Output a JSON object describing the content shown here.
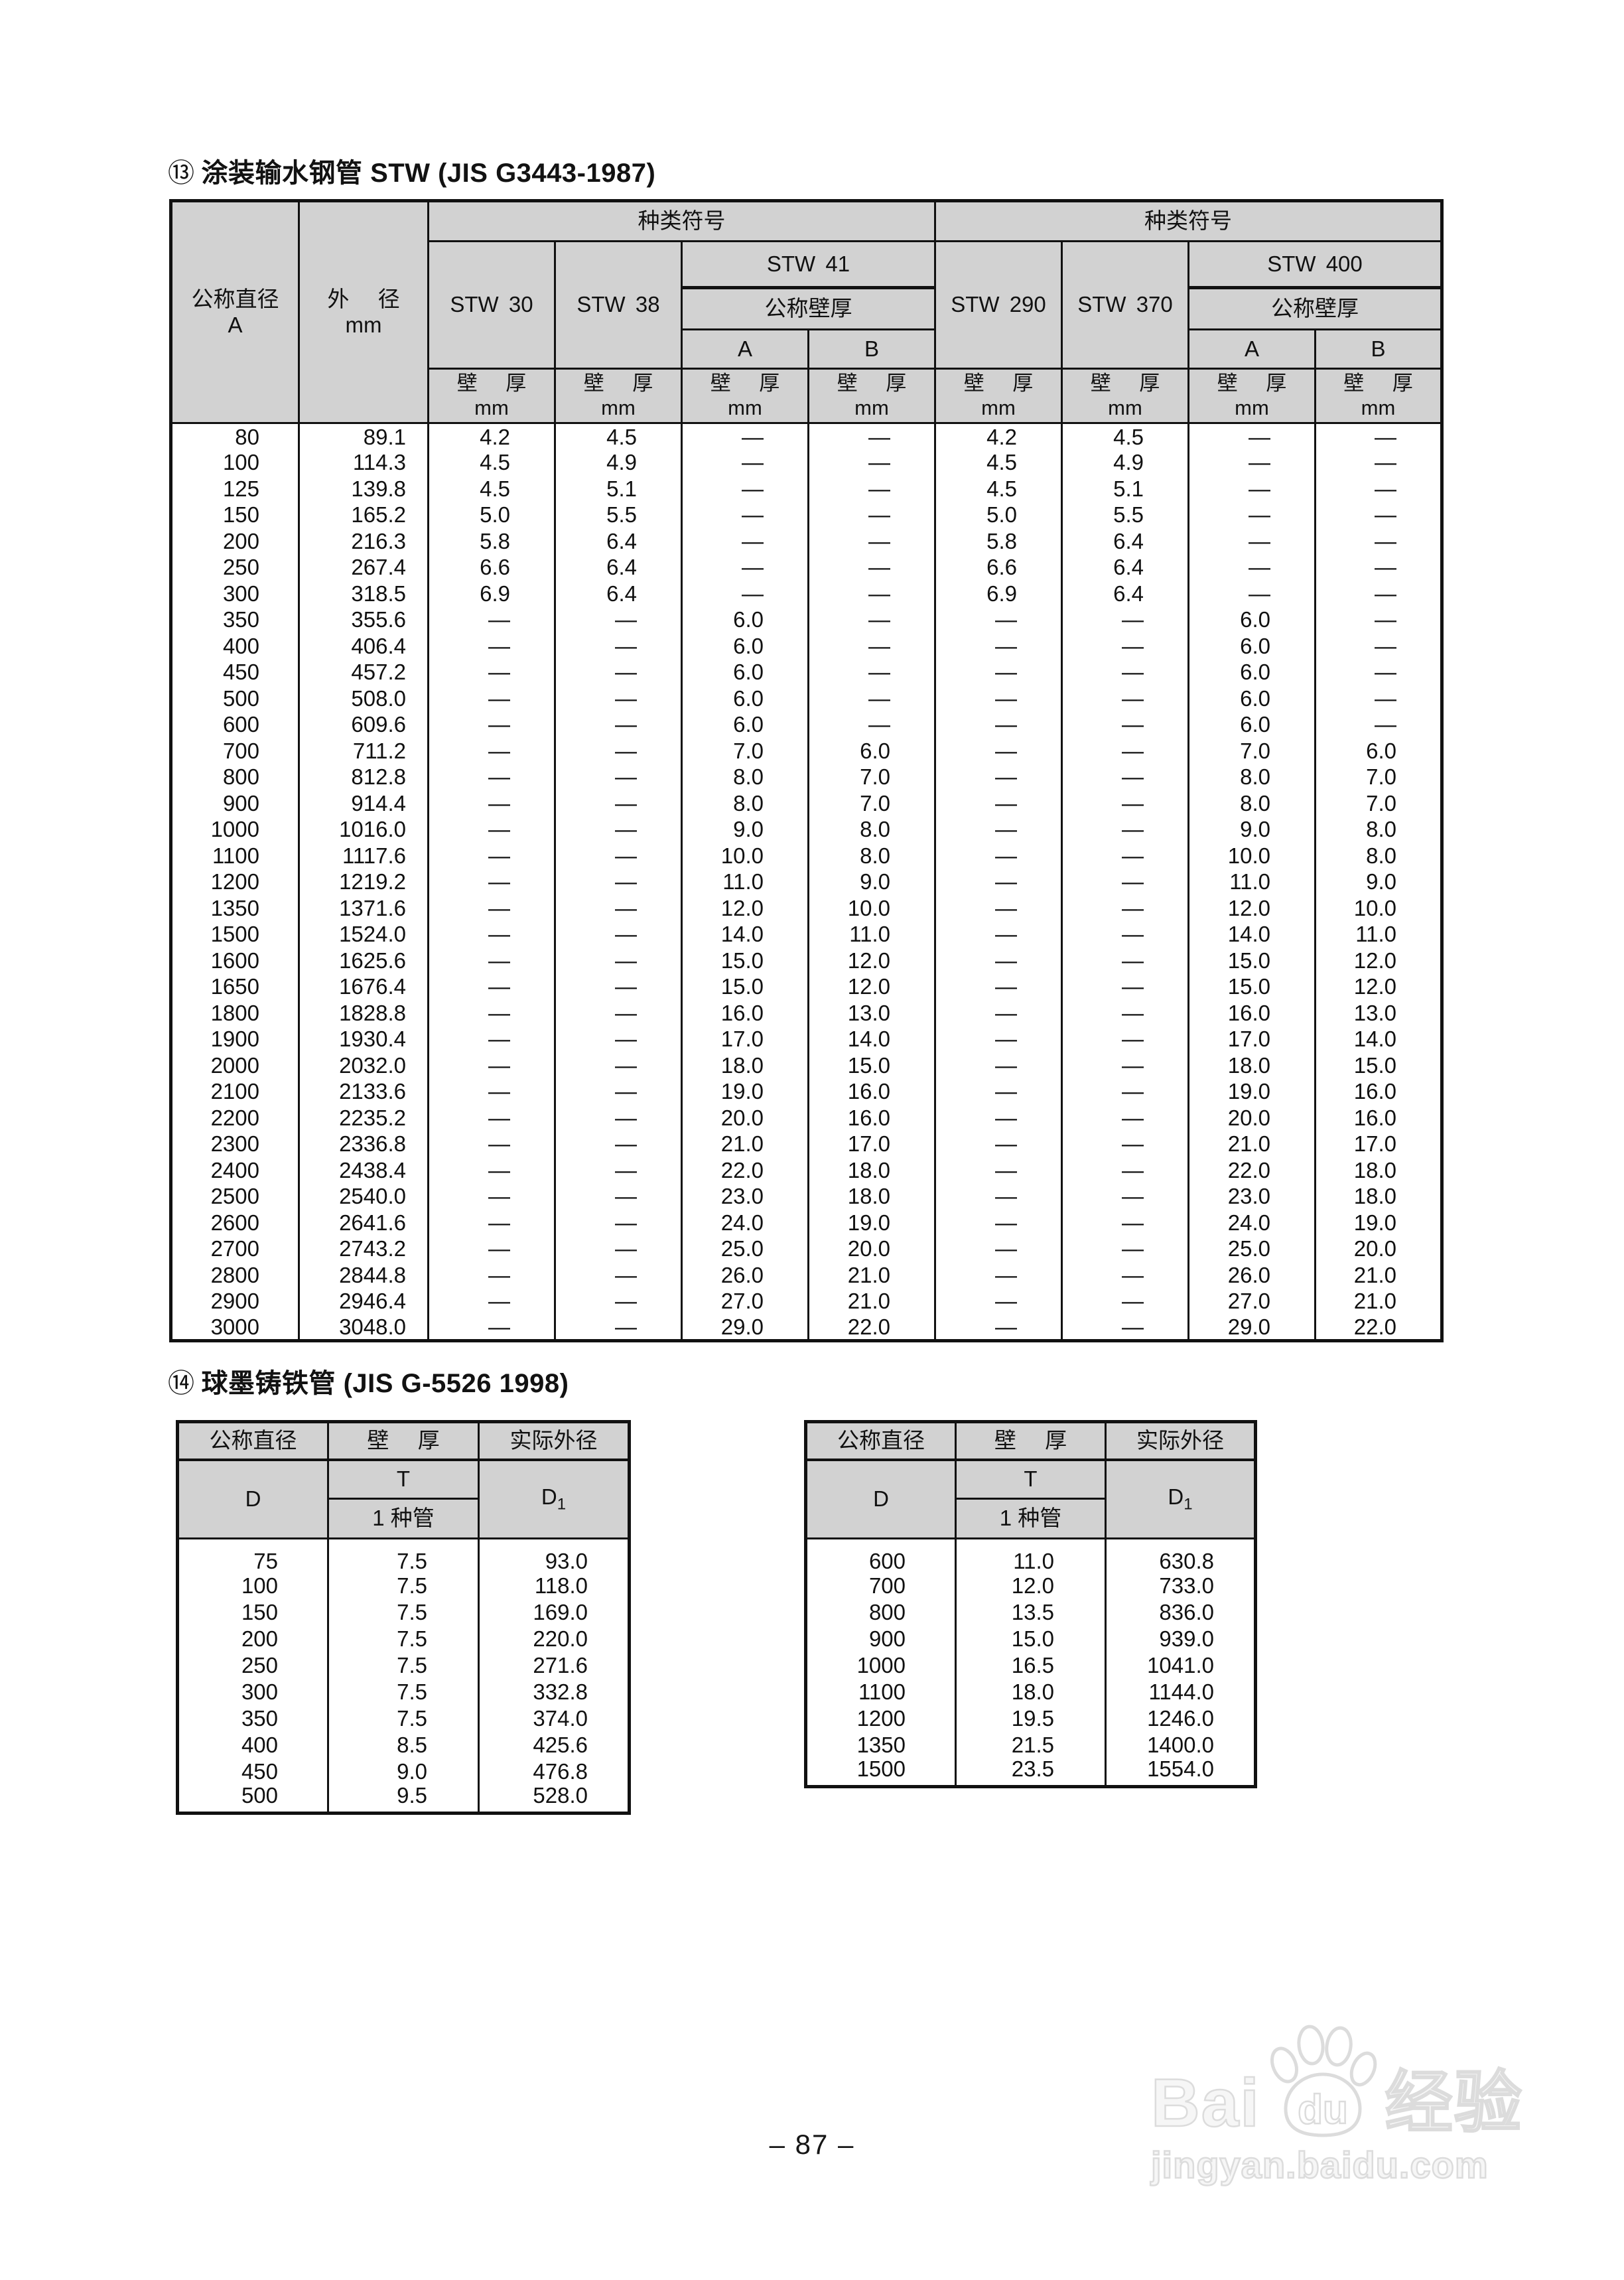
{
  "colors": {
    "header_bg": "#d2d2d2",
    "line": "#111111",
    "watermark": "#dcdcdc"
  },
  "page": {
    "footer": "– 87 –",
    "watermark": {
      "bai": "Bai",
      "du": "du",
      "cn": "经验",
      "url": "jingyan.baidu.com"
    }
  },
  "table1": {
    "title_index": "⑬",
    "title": "涂装输水钢管 STW (JIS G3443-1987)",
    "headers": {
      "dn": "公称直径",
      "dn_sub": "A",
      "od": "外 径",
      "od_sub": "mm",
      "kind": "种类符号",
      "stw30": "STW 30",
      "stw38": "STW 38",
      "stw41": "STW 41",
      "stw290": "STW 290",
      "stw370": "STW 370",
      "stw400": "STW 400",
      "nominal_wall": "公称壁厚",
      "a": "A",
      "b": "B",
      "wall": "壁 厚",
      "wall_sub": "mm"
    },
    "rows": [
      [
        "80",
        "89.1",
        "4.2",
        "4.5",
        "—",
        "—",
        "4.2",
        "4.5",
        "—",
        "—"
      ],
      [
        "100",
        "114.3",
        "4.5",
        "4.9",
        "—",
        "—",
        "4.5",
        "4.9",
        "—",
        "—"
      ],
      [
        "125",
        "139.8",
        "4.5",
        "5.1",
        "—",
        "—",
        "4.5",
        "5.1",
        "—",
        "—"
      ],
      [
        "150",
        "165.2",
        "5.0",
        "5.5",
        "—",
        "—",
        "5.0",
        "5.5",
        "—",
        "—"
      ],
      [
        "200",
        "216.3",
        "5.8",
        "6.4",
        "—",
        "—",
        "5.8",
        "6.4",
        "—",
        "—"
      ],
      [
        "250",
        "267.4",
        "6.6",
        "6.4",
        "—",
        "—",
        "6.6",
        "6.4",
        "—",
        "—"
      ],
      [
        "300",
        "318.5",
        "6.9",
        "6.4",
        "—",
        "—",
        "6.9",
        "6.4",
        "—",
        "—"
      ],
      [
        "350",
        "355.6",
        "—",
        "—",
        "6.0",
        "—",
        "—",
        "—",
        "6.0",
        "—"
      ],
      [
        "400",
        "406.4",
        "—",
        "—",
        "6.0",
        "—",
        "—",
        "—",
        "6.0",
        "—"
      ],
      [
        "450",
        "457.2",
        "—",
        "—",
        "6.0",
        "—",
        "—",
        "—",
        "6.0",
        "—"
      ],
      [
        "500",
        "508.0",
        "—",
        "—",
        "6.0",
        "—",
        "—",
        "—",
        "6.0",
        "—"
      ],
      [
        "600",
        "609.6",
        "—",
        "—",
        "6.0",
        "—",
        "—",
        "—",
        "6.0",
        "—"
      ],
      [
        "700",
        "711.2",
        "—",
        "—",
        "7.0",
        "6.0",
        "—",
        "—",
        "7.0",
        "6.0"
      ],
      [
        "800",
        "812.8",
        "—",
        "—",
        "8.0",
        "7.0",
        "—",
        "—",
        "8.0",
        "7.0"
      ],
      [
        "900",
        "914.4",
        "—",
        "—",
        "8.0",
        "7.0",
        "—",
        "—",
        "8.0",
        "7.0"
      ],
      [
        "1000",
        "1016.0",
        "—",
        "—",
        "9.0",
        "8.0",
        "—",
        "—",
        "9.0",
        "8.0"
      ],
      [
        "1100",
        "1117.6",
        "—",
        "—",
        "10.0",
        "8.0",
        "—",
        "—",
        "10.0",
        "8.0"
      ],
      [
        "1200",
        "1219.2",
        "—",
        "—",
        "11.0",
        "9.0",
        "—",
        "—",
        "11.0",
        "9.0"
      ],
      [
        "1350",
        "1371.6",
        "—",
        "—",
        "12.0",
        "10.0",
        "—",
        "—",
        "12.0",
        "10.0"
      ],
      [
        "1500",
        "1524.0",
        "—",
        "—",
        "14.0",
        "11.0",
        "—",
        "—",
        "14.0",
        "11.0"
      ],
      [
        "1600",
        "1625.6",
        "—",
        "—",
        "15.0",
        "12.0",
        "—",
        "—",
        "15.0",
        "12.0"
      ],
      [
        "1650",
        "1676.4",
        "—",
        "—",
        "15.0",
        "12.0",
        "—",
        "—",
        "15.0",
        "12.0"
      ],
      [
        "1800",
        "1828.8",
        "—",
        "—",
        "16.0",
        "13.0",
        "—",
        "—",
        "16.0",
        "13.0"
      ],
      [
        "1900",
        "1930.4",
        "—",
        "—",
        "17.0",
        "14.0",
        "—",
        "—",
        "17.0",
        "14.0"
      ],
      [
        "2000",
        "2032.0",
        "—",
        "—",
        "18.0",
        "15.0",
        "—",
        "—",
        "18.0",
        "15.0"
      ],
      [
        "2100",
        "2133.6",
        "—",
        "—",
        "19.0",
        "16.0",
        "—",
        "—",
        "19.0",
        "16.0"
      ],
      [
        "2200",
        "2235.2",
        "—",
        "—",
        "20.0",
        "16.0",
        "—",
        "—",
        "20.0",
        "16.0"
      ],
      [
        "2300",
        "2336.8",
        "—",
        "—",
        "21.0",
        "17.0",
        "—",
        "—",
        "21.0",
        "17.0"
      ],
      [
        "2400",
        "2438.4",
        "—",
        "—",
        "22.0",
        "18.0",
        "—",
        "—",
        "22.0",
        "18.0"
      ],
      [
        "2500",
        "2540.0",
        "—",
        "—",
        "23.0",
        "18.0",
        "—",
        "—",
        "23.0",
        "18.0"
      ],
      [
        "2600",
        "2641.6",
        "—",
        "—",
        "24.0",
        "19.0",
        "—",
        "—",
        "24.0",
        "19.0"
      ],
      [
        "2700",
        "2743.2",
        "—",
        "—",
        "25.0",
        "20.0",
        "—",
        "—",
        "25.0",
        "20.0"
      ],
      [
        "2800",
        "2844.8",
        "—",
        "—",
        "26.0",
        "21.0",
        "—",
        "—",
        "26.0",
        "21.0"
      ],
      [
        "2900",
        "2946.4",
        "—",
        "—",
        "27.0",
        "21.0",
        "—",
        "—",
        "27.0",
        "21.0"
      ],
      [
        "3000",
        "3048.0",
        "—",
        "—",
        "29.0",
        "22.0",
        "—",
        "—",
        "29.0",
        "22.0"
      ]
    ]
  },
  "table2": {
    "title_index": "⑭",
    "title": "球墨铸铁管 (JIS G-5526 1998)",
    "headers": {
      "dn": "公称直径",
      "wall": "壁 厚",
      "od": "实际外径",
      "d": "D",
      "t": "T",
      "pipe1": "1 种管",
      "d1_main": "D",
      "d1_sub": "1"
    },
    "left_rows": [
      [
        "75",
        "7.5",
        "93.0"
      ],
      [
        "100",
        "7.5",
        "118.0"
      ],
      [
        "150",
        "7.5",
        "169.0"
      ],
      [
        "200",
        "7.5",
        "220.0"
      ],
      [
        "250",
        "7.5",
        "271.6"
      ],
      [
        "300",
        "7.5",
        "332.8"
      ],
      [
        "350",
        "7.5",
        "374.0"
      ],
      [
        "400",
        "8.5",
        "425.6"
      ],
      [
        "450",
        "9.0",
        "476.8"
      ],
      [
        "500",
        "9.5",
        "528.0"
      ]
    ],
    "right_rows": [
      [
        "600",
        "11.0",
        "630.8"
      ],
      [
        "700",
        "12.0",
        "733.0"
      ],
      [
        "800",
        "13.5",
        "836.0"
      ],
      [
        "900",
        "15.0",
        "939.0"
      ],
      [
        "1000",
        "16.5",
        "1041.0"
      ],
      [
        "1100",
        "18.0",
        "1144.0"
      ],
      [
        "1200",
        "19.5",
        "1246.0"
      ],
      [
        "1350",
        "21.5",
        "1400.0"
      ],
      [
        "1500",
        "23.5",
        "1554.0"
      ]
    ]
  }
}
